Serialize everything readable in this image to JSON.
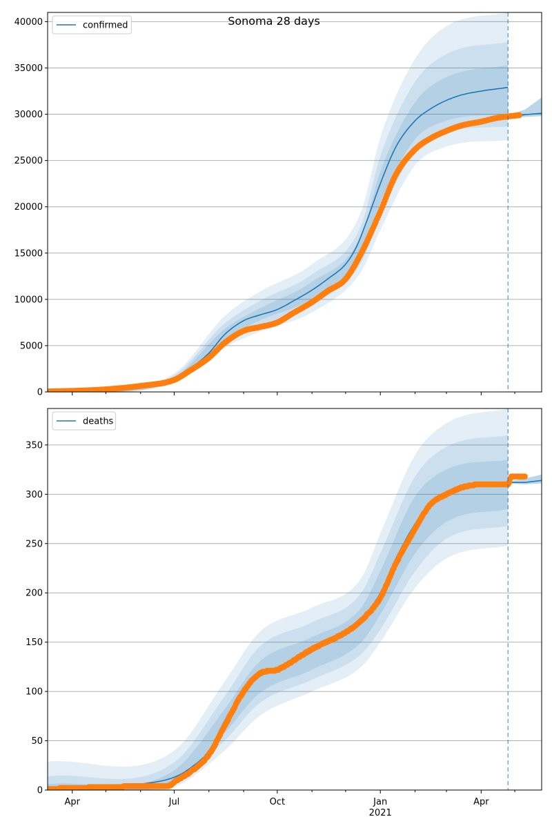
{
  "figure": {
    "title": "Sonoma 28 days"
  },
  "colors": {
    "model": "#1f77b4",
    "band": "#1f77b4",
    "observed": "#ff7f0e",
    "grid": "#b0b0b0",
    "divider": "#1f77b4"
  },
  "chart_data": [
    {
      "type": "line",
      "name": "confirmed-panel",
      "legend": {
        "label": "confirmed",
        "placement": "top-left"
      },
      "x_domain": [
        "2020-03-10",
        "2021-05-25"
      ],
      "forecast_start": "2021-04-25",
      "ylim": [
        0,
        41000
      ],
      "y_ticks": [
        0,
        5000,
        10000,
        15000,
        20000,
        25000,
        30000,
        35000,
        40000
      ],
      "y_tick_labels": [
        "0",
        "5000",
        "10000",
        "15000",
        "20000",
        "25000",
        "30000",
        "35000",
        "40000"
      ],
      "x_ticks": [],
      "grid": "horizontal",
      "model_series": {
        "name": "confirmed",
        "points": [
          [
            "2020-03-10",
            60
          ],
          [
            "2020-04-01",
            130
          ],
          [
            "2020-05-01",
            320
          ],
          [
            "2020-06-01",
            700
          ],
          [
            "2020-07-01",
            1400
          ],
          [
            "2020-07-15",
            2500
          ],
          [
            "2020-08-01",
            4200
          ],
          [
            "2020-08-15",
            6200
          ],
          [
            "2020-09-01",
            7700
          ],
          [
            "2020-09-15",
            8300
          ],
          [
            "2020-10-01",
            8900
          ],
          [
            "2020-10-15",
            9800
          ],
          [
            "2020-11-01",
            11000
          ],
          [
            "2020-11-15",
            12200
          ],
          [
            "2020-12-01",
            13800
          ],
          [
            "2020-12-10",
            15500
          ],
          [
            "2020-12-20",
            18500
          ],
          [
            "2021-01-01",
            22500
          ],
          [
            "2021-01-15",
            26500
          ],
          [
            "2021-02-01",
            29300
          ],
          [
            "2021-02-15",
            30600
          ],
          [
            "2021-03-01",
            31500
          ],
          [
            "2021-03-15",
            32100
          ],
          [
            "2021-04-01",
            32500
          ],
          [
            "2021-04-25",
            32900
          ]
        ]
      },
      "forecast_series": [
        [
          "2021-04-25",
          29700
        ],
        [
          "2021-05-10",
          29950
        ],
        [
          "2021-05-25",
          30100
        ]
      ],
      "bands": [
        {
          "level": "outer",
          "lower": [
            [
              "2020-03-10",
              0
            ],
            [
              "2020-07-01",
              1000
            ],
            [
              "2020-08-15",
              4800
            ],
            [
              "2020-09-15",
              6500
            ],
            [
              "2020-11-01",
              8600
            ],
            [
              "2020-12-15",
              13000
            ],
            [
              "2021-01-01",
              17500
            ],
            [
              "2021-02-01",
              24500
            ],
            [
              "2021-03-01",
              26500
            ],
            [
              "2021-04-25",
              27200
            ]
          ],
          "upper": [
            [
              "2020-03-10",
              300
            ],
            [
              "2020-07-01",
              2000
            ],
            [
              "2020-08-15",
              8200
            ],
            [
              "2020-09-15",
              10800
            ],
            [
              "2020-11-01",
              13800
            ],
            [
              "2020-12-15",
              19500
            ],
            [
              "2021-01-01",
              27500
            ],
            [
              "2021-02-01",
              36000
            ],
            [
              "2021-03-01",
              39500
            ],
            [
              "2021-04-25",
              41000
            ]
          ]
        },
        {
          "level": "middle",
          "lower": [
            [
              "2020-03-10",
              20
            ],
            [
              "2020-07-01",
              1150
            ],
            [
              "2020-08-15",
              5300
            ],
            [
              "2020-09-15",
              7100
            ],
            [
              "2020-11-01",
              9400
            ],
            [
              "2020-12-15",
              14000
            ],
            [
              "2021-01-01",
              19000
            ],
            [
              "2021-02-01",
              26000
            ],
            [
              "2021-03-01",
              28000
            ],
            [
              "2021-04-25",
              28700
            ]
          ],
          "upper": [
            [
              "2020-03-10",
              200
            ],
            [
              "2020-07-01",
              1800
            ],
            [
              "2020-08-15",
              7400
            ],
            [
              "2020-09-15",
              9800
            ],
            [
              "2020-11-01",
              12700
            ],
            [
              "2020-12-15",
              18000
            ],
            [
              "2021-01-01",
              25500
            ],
            [
              "2021-02-01",
              33500
            ],
            [
              "2021-03-01",
              36500
            ],
            [
              "2021-04-25",
              37800
            ]
          ]
        },
        {
          "level": "inner",
          "lower": [
            [
              "2020-03-10",
              40
            ],
            [
              "2020-07-01",
              1250
            ],
            [
              "2020-08-15",
              5700
            ],
            [
              "2020-09-15",
              7700
            ],
            [
              "2020-11-01",
              10100
            ],
            [
              "2020-12-15",
              15000
            ],
            [
              "2021-01-01",
              20500
            ],
            [
              "2021-02-01",
              27300
            ],
            [
              "2021-03-01",
              29300
            ],
            [
              "2021-04-25",
              30000
            ]
          ],
          "upper": [
            [
              "2020-03-10",
              120
            ],
            [
              "2020-07-01",
              1600
            ],
            [
              "2020-08-15",
              6800
            ],
            [
              "2020-09-15",
              9000
            ],
            [
              "2020-11-01",
              11900
            ],
            [
              "2020-12-15",
              16900
            ],
            [
              "2021-01-01",
              23800
            ],
            [
              "2021-02-01",
              31300
            ],
            [
              "2021-03-01",
              34000
            ],
            [
              "2021-04-25",
              35300
            ]
          ]
        }
      ],
      "forecast_band": [
        [
          "2021-04-25",
          29600,
          29900
        ],
        [
          "2021-05-10",
          29700,
          30500
        ],
        [
          "2021-05-25",
          29800,
          31800
        ]
      ],
      "observed_anchors": [
        [
          "2020-03-10",
          50
        ],
        [
          "2020-04-01",
          110
        ],
        [
          "2020-05-01",
          280
        ],
        [
          "2020-06-01",
          650
        ],
        [
          "2020-07-01",
          1300
        ],
        [
          "2020-07-15",
          2300
        ],
        [
          "2020-08-01",
          3700
        ],
        [
          "2020-08-15",
          5300
        ],
        [
          "2020-09-01",
          6600
        ],
        [
          "2020-09-15",
          7000
        ],
        [
          "2020-10-01",
          7500
        ],
        [
          "2020-10-15",
          8500
        ],
        [
          "2020-11-01",
          9700
        ],
        [
          "2020-11-15",
          10900
        ],
        [
          "2020-12-01",
          12200
        ],
        [
          "2020-12-15",
          15000
        ],
        [
          "2021-01-01",
          19500
        ],
        [
          "2021-01-15",
          23500
        ],
        [
          "2021-02-01",
          26200
        ],
        [
          "2021-02-15",
          27400
        ],
        [
          "2021-03-01",
          28200
        ],
        [
          "2021-03-15",
          28800
        ],
        [
          "2021-04-01",
          29200
        ],
        [
          "2021-04-15",
          29600
        ],
        [
          "2021-05-05",
          29900
        ]
      ]
    },
    {
      "type": "line",
      "name": "deaths-panel",
      "legend": {
        "label": "deaths",
        "placement": "top-left"
      },
      "x_domain": [
        "2020-03-10",
        "2021-05-25"
      ],
      "forecast_start": "2021-04-25",
      "ylim": [
        0,
        387
      ],
      "y_ticks": [
        0,
        50,
        100,
        150,
        200,
        250,
        300,
        350
      ],
      "y_tick_labels": [
        "0",
        "50",
        "100",
        "150",
        "200",
        "250",
        "300",
        "350"
      ],
      "x_ticks": [
        {
          "date": "2020-04-01",
          "label": "Apr"
        },
        {
          "date": "2020-07-01",
          "label": "Jul"
        },
        {
          "date": "2020-10-01",
          "label": "Oct"
        },
        {
          "date": "2021-01-01",
          "label": "Jan",
          "sublabel": "2021"
        },
        {
          "date": "2021-04-01",
          "label": "Apr"
        }
      ],
      "grid": "horizontal",
      "model_series": {
        "name": "deaths",
        "points": [
          [
            "2020-03-10",
            1
          ],
          [
            "2020-05-01",
            3
          ],
          [
            "2020-06-01",
            6
          ],
          [
            "2020-07-01",
            13
          ],
          [
            "2020-07-15",
            22
          ],
          [
            "2020-08-01",
            40
          ],
          [
            "2020-08-15",
            70
          ],
          [
            "2020-09-01",
            100
          ],
          [
            "2020-09-15",
            115
          ],
          [
            "2020-10-01",
            122
          ],
          [
            "2020-11-01",
            140
          ],
          [
            "2020-12-01",
            162
          ],
          [
            "2020-12-20",
            180
          ],
          [
            "2021-01-01",
            200
          ],
          [
            "2021-01-15",
            235
          ],
          [
            "2021-02-01",
            270
          ],
          [
            "2021-02-15",
            292
          ],
          [
            "2021-03-01",
            302
          ],
          [
            "2021-03-15",
            308
          ],
          [
            "2021-04-01",
            310
          ],
          [
            "2021-04-25",
            311
          ]
        ]
      },
      "forecast_series": [
        [
          "2021-04-25",
          312
        ],
        [
          "2021-05-10",
          312
        ],
        [
          "2021-05-25",
          314
        ]
      ],
      "bands": [
        {
          "level": "outer",
          "lower": [
            [
              "2020-03-10",
              0
            ],
            [
              "2020-07-01",
              3
            ],
            [
              "2020-08-15",
              40
            ],
            [
              "2020-09-15",
              75
            ],
            [
              "2020-11-01",
              100
            ],
            [
              "2020-12-15",
              125
            ],
            [
              "2021-01-01",
              150
            ],
            [
              "2021-02-01",
              205
            ],
            [
              "2021-03-01",
              235
            ],
            [
              "2021-04-25",
              248
            ]
          ],
          "upper": [
            [
              "2020-03-10",
              29
            ],
            [
              "2020-07-01",
              40
            ],
            [
              "2020-08-15",
              110
            ],
            [
              "2020-09-15",
              160
            ],
            [
              "2020-11-01",
              185
            ],
            [
              "2020-12-15",
              215
            ],
            [
              "2021-01-01",
              260
            ],
            [
              "2021-02-01",
              340
            ],
            [
              "2021-03-01",
              372
            ],
            [
              "2021-04-25",
              387
            ]
          ]
        },
        {
          "level": "middle",
          "lower": [
            [
              "2020-03-10",
              0
            ],
            [
              "2020-07-01",
              6
            ],
            [
              "2020-08-15",
              50
            ],
            [
              "2020-09-15",
              88
            ],
            [
              "2020-11-01",
              112
            ],
            [
              "2020-12-15",
              138
            ],
            [
              "2021-01-01",
              163
            ],
            [
              "2021-02-01",
              222
            ],
            [
              "2021-03-01",
              255
            ],
            [
              "2021-04-25",
              268
            ]
          ],
          "upper": [
            [
              "2020-03-10",
              14
            ],
            [
              "2020-07-01",
              28
            ],
            [
              "2020-08-15",
              95
            ],
            [
              "2020-09-15",
              145
            ],
            [
              "2020-11-01",
              170
            ],
            [
              "2020-12-15",
              200
            ],
            [
              "2021-01-01",
              240
            ],
            [
              "2021-02-01",
              318
            ],
            [
              "2021-03-01",
              348
            ],
            [
              "2021-04-25",
              360
            ]
          ]
        },
        {
          "level": "inner",
          "lower": [
            [
              "2020-03-10",
              0
            ],
            [
              "2020-07-01",
              9
            ],
            [
              "2020-08-15",
              58
            ],
            [
              "2020-09-15",
              98
            ],
            [
              "2020-11-01",
              122
            ],
            [
              "2020-12-15",
              150
            ],
            [
              "2021-01-01",
              178
            ],
            [
              "2021-02-01",
              240
            ],
            [
              "2021-03-01",
              272
            ],
            [
              "2021-04-25",
              285
            ]
          ],
          "upper": [
            [
              "2020-03-10",
              6
            ],
            [
              "2020-07-01",
              20
            ],
            [
              "2020-08-15",
              82
            ],
            [
              "2020-09-15",
              130
            ],
            [
              "2020-11-01",
              155
            ],
            [
              "2020-12-15",
              185
            ],
            [
              "2021-01-01",
              222
            ],
            [
              "2021-02-01",
              298
            ],
            [
              "2021-03-01",
              325
            ],
            [
              "2021-04-25",
              335
            ]
          ]
        }
      ],
      "forecast_band": [
        [
          "2021-04-25",
          311,
          313
        ],
        [
          "2021-05-10",
          310,
          316
        ],
        [
          "2021-05-25",
          311,
          320
        ]
      ],
      "observed_anchors": [
        [
          "2020-03-10",
          1
        ],
        [
          "2020-04-01",
          2
        ],
        [
          "2020-05-01",
          3
        ],
        [
          "2020-06-01",
          4
        ],
        [
          "2020-06-28",
          5
        ],
        [
          "2020-07-01",
          8
        ],
        [
          "2020-07-15",
          18
        ],
        [
          "2020-08-01",
          36
        ],
        [
          "2020-08-15",
          65
        ],
        [
          "2020-09-01",
          100
        ],
        [
          "2020-09-15",
          118
        ],
        [
          "2020-10-01",
          122
        ],
        [
          "2020-11-01",
          143
        ],
        [
          "2020-12-01",
          160
        ],
        [
          "2020-12-15",
          172
        ],
        [
          "2021-01-01",
          195
        ],
        [
          "2021-01-15",
          230
        ],
        [
          "2021-02-01",
          265
        ],
        [
          "2021-02-15",
          290
        ],
        [
          "2021-03-01",
          300
        ],
        [
          "2021-03-15",
          307
        ],
        [
          "2021-04-01",
          310
        ],
        [
          "2021-04-25",
          310
        ],
        [
          "2021-04-28",
          318
        ],
        [
          "2021-05-10",
          318
        ]
      ]
    }
  ]
}
